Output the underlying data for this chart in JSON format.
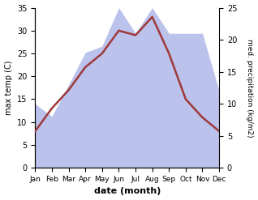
{
  "months": [
    "Jan",
    "Feb",
    "Mar",
    "Apr",
    "May",
    "Jun",
    "Jul",
    "Aug",
    "Sep",
    "Oct",
    "Nov",
    "Dec"
  ],
  "month_indices": [
    1,
    2,
    3,
    4,
    5,
    6,
    7,
    8,
    9,
    10,
    11,
    12
  ],
  "temperature": [
    8,
    13,
    17,
    22,
    25,
    30,
    29,
    33,
    25,
    15,
    11,
    8
  ],
  "precipitation": [
    10,
    8,
    13,
    18,
    19,
    25,
    21,
    25,
    21,
    21,
    21,
    12
  ],
  "temp_color": "#9e3a3a",
  "precip_color": "#b0b8e8",
  "temp_ylim": [
    0,
    35
  ],
  "precip_ylim": [
    0,
    25
  ],
  "temp_yticks": [
    0,
    5,
    10,
    15,
    20,
    25,
    30,
    35
  ],
  "precip_yticks": [
    0,
    5,
    10,
    15,
    20,
    25
  ],
  "ylabel_left": "max temp (C)",
  "ylabel_right": "med. precipitation (kg/m2)",
  "xlabel": "date (month)",
  "figsize": [
    3.18,
    2.47
  ],
  "dpi": 100
}
